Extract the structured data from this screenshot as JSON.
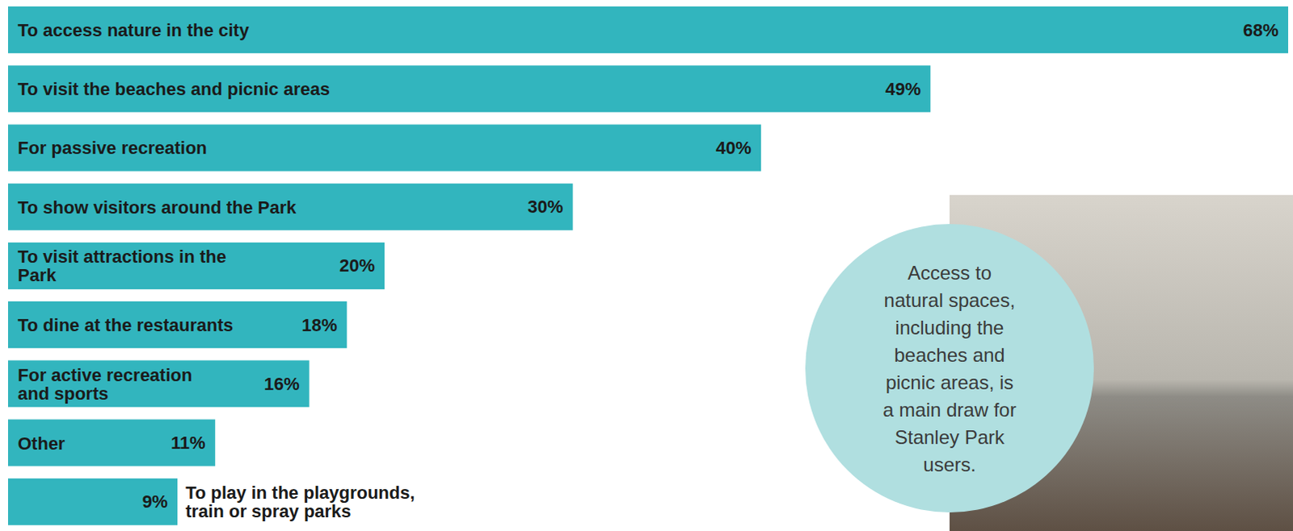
{
  "chart_data": {
    "type": "bar",
    "orientation": "horizontal",
    "categories": [
      "To access nature in the city",
      "To visit the beaches and picnic areas",
      "For passive recreation",
      "To show visitors around the Park",
      "To visit attractions in the Park",
      "To dine at the restaurants",
      "For active recreation and sports",
      "Other",
      "To play in the playgrounds, train or spray parks"
    ],
    "values": [
      68,
      49,
      40,
      30,
      20,
      18,
      16,
      11,
      9
    ],
    "value_labels": [
      "68%",
      "49%",
      "40%",
      "30%",
      "20%",
      "18%",
      "16%",
      "11%",
      "9%"
    ],
    "data_labels": true,
    "tick_labels": false,
    "color": "#32b5be",
    "xlim": [
      0,
      68
    ],
    "annotations": [
      "Access to natural spaces, including the beaches and picnic areas, is a main draw for Stanley Park users."
    ]
  }
}
